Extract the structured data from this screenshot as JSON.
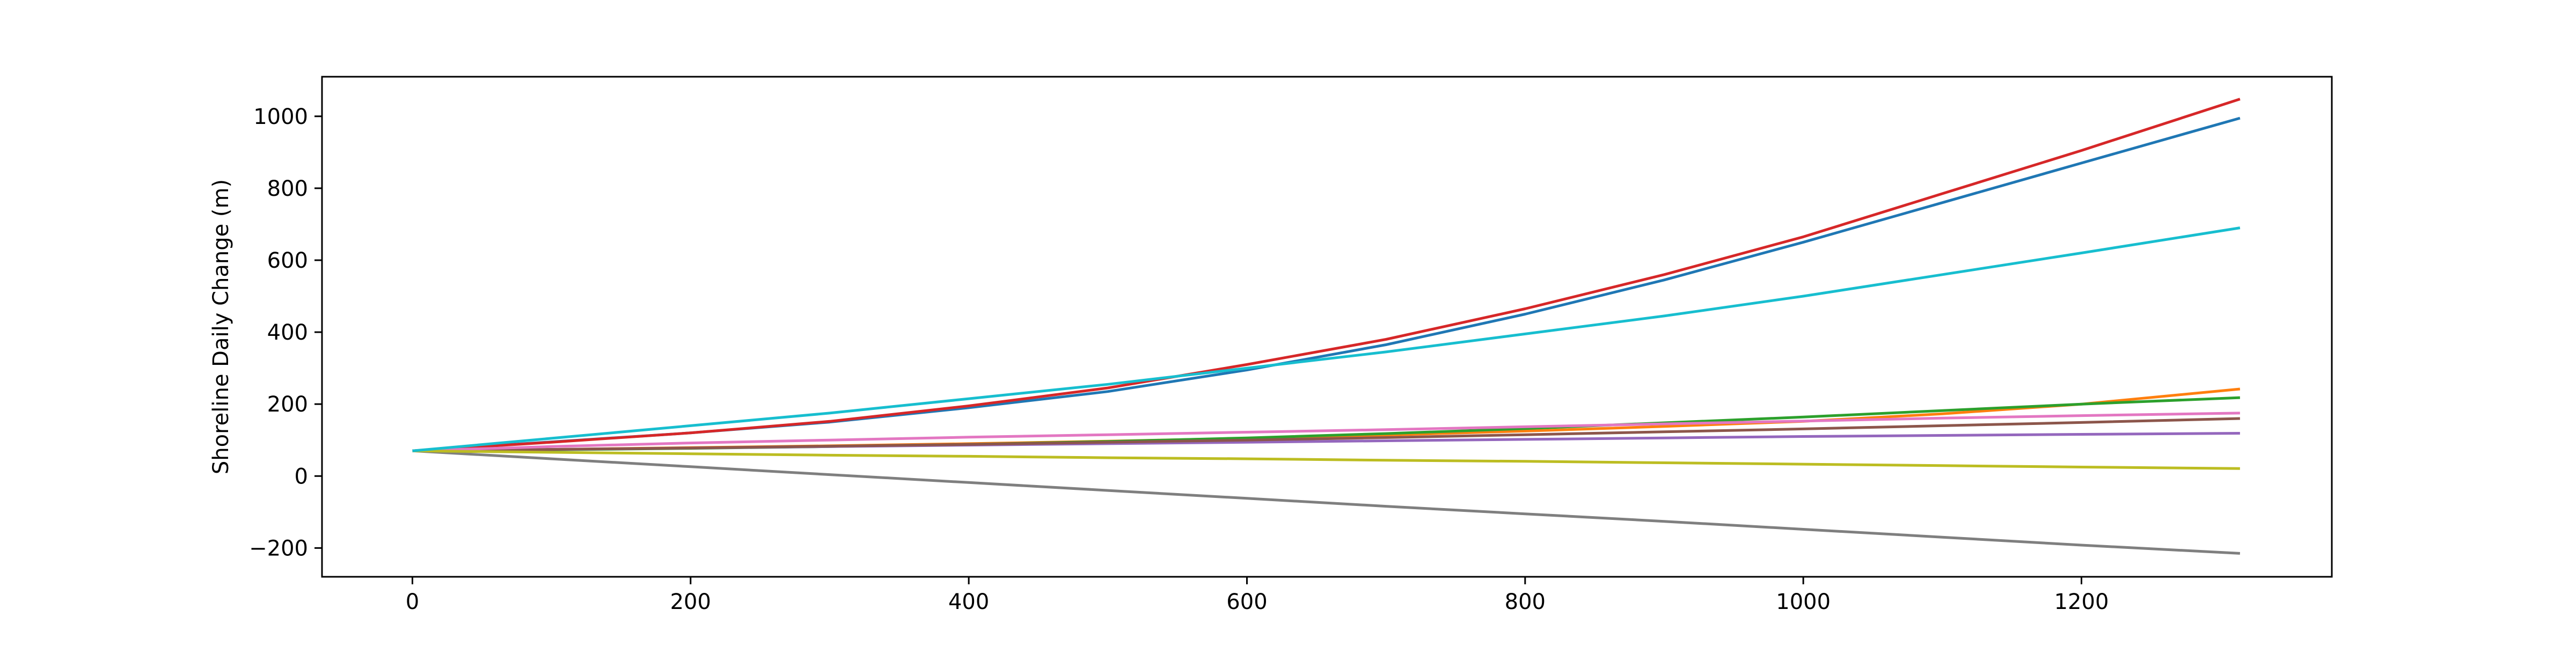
{
  "chart_data": {
    "type": "line",
    "title": "",
    "xlabel": "",
    "ylabel": "Shoreline Daily Change (m)",
    "xlim": [
      -65,
      1380
    ],
    "ylim": [
      -280,
      1110
    ],
    "xticks": [
      0,
      200,
      400,
      600,
      800,
      1000,
      1200
    ],
    "yticks": [
      -200,
      0,
      200,
      400,
      600,
      800,
      1000
    ],
    "grid": false,
    "legend": "none",
    "x": [
      0,
      100,
      200,
      300,
      400,
      500,
      600,
      700,
      800,
      900,
      1000,
      1100,
      1200,
      1314
    ],
    "series": [
      {
        "color": "#1f77b4",
        "values": [
          70,
          95,
          120,
          150,
          190,
          235,
          295,
          365,
          450,
          545,
          650,
          760,
          870,
          995
        ]
      },
      {
        "color": "#ff7f0e",
        "values": [
          70,
          74,
          79,
          84,
          90,
          97,
          105,
          114,
          125,
          138,
          152,
          173,
          200,
          242
        ]
      },
      {
        "color": "#2ca02c",
        "values": [
          70,
          73,
          77,
          82,
          88,
          96,
          106,
          118,
          132,
          148,
          164,
          182,
          200,
          218
        ]
      },
      {
        "color": "#d62728",
        "values": [
          70,
          94,
          120,
          152,
          195,
          245,
          310,
          380,
          465,
          560,
          665,
          785,
          905,
          1048
        ]
      },
      {
        "color": "#9467bd",
        "values": [
          70,
          74,
          78,
          82,
          86,
          90,
          94,
          98,
          102,
          106,
          110,
          113,
          116,
          119
        ]
      },
      {
        "color": "#8c564b",
        "values": [
          70,
          74,
          78,
          83,
          88,
          94,
          100,
          107,
          115,
          123,
          131,
          140,
          149,
          160
        ]
      },
      {
        "color": "#e377c2",
        "values": [
          70,
          82,
          92,
          100,
          108,
          115,
          122,
          129,
          137,
          145,
          153,
          161,
          168,
          175
        ]
      },
      {
        "color": "#7f7f7f",
        "values": [
          70,
          48,
          26,
          4,
          -18,
          -40,
          -62,
          -84,
          -105,
          -126,
          -148,
          -170,
          -192,
          -215
        ]
      },
      {
        "color": "#bcbd22",
        "values": [
          70,
          66,
          62,
          58,
          55,
          51,
          48,
          44,
          41,
          37,
          33,
          29,
          25,
          21
        ]
      },
      {
        "color": "#17becf",
        "values": [
          70,
          105,
          140,
          175,
          215,
          255,
          300,
          345,
          395,
          445,
          500,
          560,
          620,
          690
        ]
      }
    ]
  }
}
